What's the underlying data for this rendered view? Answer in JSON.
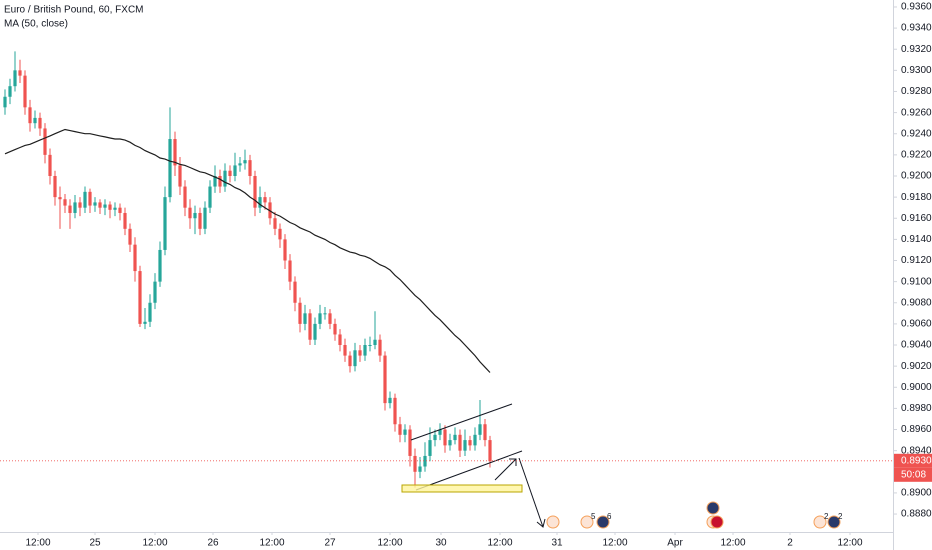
{
  "chart_data": {
    "type": "candlestick",
    "title": "Euro / British Pound, 60, FXCM",
    "up_color": "#26a69a",
    "down_color": "#ef5350",
    "grid": false,
    "x": [
      0,
      1,
      2,
      3,
      4,
      5,
      6,
      7,
      8,
      9,
      10,
      11,
      12,
      13,
      14,
      15,
      16,
      17,
      18,
      19,
      20,
      21,
      22,
      23,
      24,
      25,
      26,
      27,
      28,
      29,
      30,
      31,
      32,
      33,
      34,
      35,
      36,
      37,
      38,
      39,
      40,
      41,
      42,
      43,
      44,
      45,
      46,
      47,
      48,
      49,
      50,
      51,
      52,
      53,
      54,
      55,
      56,
      57,
      58,
      59,
      60,
      61,
      62,
      63,
      64,
      65,
      66,
      67,
      68,
      69,
      70,
      71,
      72,
      73,
      74,
      75,
      76,
      77,
      78,
      79,
      80,
      81,
      82,
      83,
      84,
      85,
      86,
      87,
      88,
      89,
      90,
      91,
      92,
      93,
      94,
      95,
      96,
      97
    ],
    "open": [
      0.9265,
      0.9275,
      0.9285,
      0.93,
      0.9295,
      0.9265,
      0.925,
      0.9255,
      0.9245,
      0.922,
      0.92,
      0.918,
      0.9178,
      0.9172,
      0.9165,
      0.9175,
      0.917,
      0.9185,
      0.9172,
      0.9175,
      0.917,
      0.9173,
      0.9168,
      0.917,
      0.9165,
      0.915,
      0.9135,
      0.911,
      0.906,
      0.9062,
      0.908,
      0.91,
      0.913,
      0.918,
      0.9235,
      0.921,
      0.919,
      0.917,
      0.916,
      0.9165,
      0.915,
      0.917,
      0.919,
      0.92,
      0.919,
      0.9205,
      0.92,
      0.921,
      0.9212,
      0.9215,
      0.92,
      0.917,
      0.918,
      0.9175,
      0.916,
      0.915,
      0.914,
      0.912,
      0.91,
      0.908,
      0.906,
      0.907,
      0.9045,
      0.906,
      0.907,
      0.907,
      0.906,
      0.905,
      0.904,
      0.903,
      0.902,
      0.9035,
      0.903,
      0.904,
      0.904,
      0.9045,
      0.903,
      0.8985,
      0.899,
      0.8965,
      0.8955,
      0.896,
      0.8935,
      0.892,
      0.8925,
      0.8935,
      0.895,
      0.8955,
      0.896,
      0.8945,
      0.895,
      0.8955,
      0.894,
      0.895,
      0.8945,
      0.8955,
      0.8965,
      0.895
    ],
    "high": [
      0.9282,
      0.9292,
      0.9318,
      0.931,
      0.93,
      0.9272,
      0.9262,
      0.926,
      0.925,
      0.9226,
      0.9205,
      0.919,
      0.9183,
      0.9178,
      0.9182,
      0.918,
      0.919,
      0.9188,
      0.918,
      0.9178,
      0.9178,
      0.9176,
      0.9175,
      0.9174,
      0.917,
      0.9155,
      0.9142,
      0.9115,
      0.9075,
      0.9088,
      0.9108,
      0.9138,
      0.919,
      0.9265,
      0.9242,
      0.9218,
      0.9196,
      0.9178,
      0.9172,
      0.917,
      0.9176,
      0.9196,
      0.921,
      0.9206,
      0.9212,
      0.921,
      0.9222,
      0.9218,
      0.9225,
      0.922,
      0.9205,
      0.919,
      0.9185,
      0.918,
      0.9166,
      0.9155,
      0.9145,
      0.9126,
      0.9105,
      0.9085,
      0.9078,
      0.9074,
      0.9066,
      0.9078,
      0.9076,
      0.9074,
      0.9065,
      0.9055,
      0.9046,
      0.9034,
      0.9042,
      0.904,
      0.9046,
      0.9048,
      0.9072,
      0.905,
      0.9034,
      0.8996,
      0.8994,
      0.8972,
      0.8965,
      0.8964,
      0.8942,
      0.8934,
      0.8948,
      0.8962,
      0.896,
      0.8966,
      0.8964,
      0.8956,
      0.8962,
      0.896,
      0.896,
      0.8954,
      0.8962,
      0.8988,
      0.897,
      0.8954
    ],
    "low": [
      0.9258,
      0.9268,
      0.928,
      0.9288,
      0.9258,
      0.9242,
      0.9245,
      0.9238,
      0.9212,
      0.9192,
      0.9172,
      0.915,
      0.9165,
      0.915,
      0.916,
      0.9162,
      0.9165,
      0.9165,
      0.9166,
      0.9164,
      0.9163,
      0.916,
      0.9162,
      0.9158,
      0.9144,
      0.9128,
      0.91,
      0.9057,
      0.9055,
      0.9057,
      0.9074,
      0.9095,
      0.9125,
      0.9175,
      0.92,
      0.9182,
      0.9162,
      0.915,
      0.9145,
      0.9144,
      0.9145,
      0.9165,
      0.9184,
      0.9184,
      0.9185,
      0.9194,
      0.9195,
      0.9204,
      0.9206,
      0.9192,
      0.9162,
      0.9165,
      0.9168,
      0.9154,
      0.9144,
      0.9132,
      0.9112,
      0.9092,
      0.9072,
      0.9052,
      0.9054,
      0.904,
      0.904,
      0.9055,
      0.9064,
      0.9055,
      0.9044,
      0.9034,
      0.9024,
      0.9014,
      0.9015,
      0.9024,
      0.9025,
      0.9034,
      0.9036,
      0.9024,
      0.8978,
      0.898,
      0.8958,
      0.8948,
      0.8948,
      0.8925,
      0.8905,
      0.8914,
      0.892,
      0.893,
      0.8944,
      0.895,
      0.8938,
      0.894,
      0.8946,
      0.8934,
      0.8935,
      0.894,
      0.894,
      0.895,
      0.8944,
      0.8924
    ],
    "close": [
      0.9275,
      0.9285,
      0.93,
      0.9295,
      0.9265,
      0.925,
      0.9255,
      0.9245,
      0.922,
      0.92,
      0.918,
      0.9178,
      0.9172,
      0.9165,
      0.9175,
      0.917,
      0.9185,
      0.9172,
      0.9175,
      0.917,
      0.9173,
      0.9168,
      0.917,
      0.9165,
      0.915,
      0.9135,
      0.911,
      0.906,
      0.9062,
      0.908,
      0.91,
      0.913,
      0.918,
      0.9235,
      0.921,
      0.919,
      0.917,
      0.916,
      0.9165,
      0.915,
      0.917,
      0.919,
      0.92,
      0.919,
      0.9205,
      0.92,
      0.921,
      0.9212,
      0.9215,
      0.92,
      0.917,
      0.918,
      0.9175,
      0.916,
      0.915,
      0.914,
      0.912,
      0.91,
      0.908,
      0.906,
      0.907,
      0.9045,
      0.906,
      0.907,
      0.907,
      0.906,
      0.905,
      0.904,
      0.903,
      0.902,
      0.9035,
      0.903,
      0.904,
      0.904,
      0.9045,
      0.903,
      0.8985,
      0.899,
      0.8965,
      0.8955,
      0.896,
      0.8935,
      0.892,
      0.8925,
      0.8935,
      0.895,
      0.8955,
      0.896,
      0.8945,
      0.895,
      0.8955,
      0.894,
      0.895,
      0.8945,
      0.8955,
      0.8965,
      0.895,
      0.893
    ],
    "ma": {
      "name": "MA (50, close)",
      "color": "#1e1e1e",
      "values": [
        0.9221,
        0.9223,
        0.9225,
        0.9227,
        0.9229,
        0.923,
        0.9232,
        0.9234,
        0.9236,
        0.9238,
        0.924,
        0.9242,
        0.9244,
        0.9243,
        0.9242,
        0.9241,
        0.924,
        0.924,
        0.9239,
        0.9238,
        0.9237,
        0.9236,
        0.9235,
        0.9235,
        0.9234,
        0.9232,
        0.9229,
        0.9227,
        0.9224,
        0.9222,
        0.922,
        0.9217,
        0.9216,
        0.9214,
        0.9213,
        0.9211,
        0.921,
        0.9208,
        0.9206,
        0.9204,
        0.9203,
        0.9201,
        0.9199,
        0.9197,
        0.9194,
        0.9192,
        0.9189,
        0.9187,
        0.9184,
        0.918,
        0.9177,
        0.9173,
        0.917,
        0.9167,
        0.9164,
        0.9162,
        0.9159,
        0.9156,
        0.9154,
        0.9151,
        0.9149,
        0.9147,
        0.9144,
        0.9142,
        0.914,
        0.9137,
        0.9135,
        0.9132,
        0.913,
        0.9128,
        0.9127,
        0.9125,
        0.9124,
        0.9122,
        0.9119,
        0.9116,
        0.9114,
        0.9111,
        0.9106,
        0.9102,
        0.9097,
        0.9092,
        0.9087,
        0.9083,
        0.9078,
        0.9073,
        0.9068,
        0.9064,
        0.9059,
        0.9054,
        0.9049,
        0.9045,
        0.904,
        0.9035,
        0.903,
        0.9024,
        0.9019,
        0.9014
      ]
    },
    "xlim": [
      -1,
      177.6
    ],
    "ylim": [
      0.8863,
      0.93666
    ],
    "xticks": [
      {
        "value": 6.6,
        "label": "12:00"
      },
      {
        "value": 18,
        "label": "25"
      },
      {
        "value": 30,
        "label": "12:00"
      },
      {
        "value": 41.6,
        "label": "26"
      },
      {
        "value": 53.4,
        "label": "12:00"
      },
      {
        "value": 65,
        "label": "27"
      },
      {
        "value": 77,
        "label": "12:00"
      },
      {
        "value": 87.2,
        "label": "30"
      },
      {
        "value": 99,
        "label": "12:00"
      },
      {
        "value": 110.4,
        "label": "31"
      },
      {
        "value": 122,
        "label": "12:00"
      },
      {
        "value": 134,
        "label": "Apr"
      },
      {
        "value": 145.6,
        "label": "12:00"
      },
      {
        "value": 157,
        "label": "2"
      },
      {
        "value": 169,
        "label": "12:00"
      }
    ],
    "yticks": [
      {
        "value": 0.936,
        "label": "0.93600"
      },
      {
        "value": 0.934,
        "label": "0.93400"
      },
      {
        "value": 0.932,
        "label": "0.93200"
      },
      {
        "value": 0.93,
        "label": "0.93000"
      },
      {
        "value": 0.928,
        "label": "0.92800"
      },
      {
        "value": 0.926,
        "label": "0.92600"
      },
      {
        "value": 0.924,
        "label": "0.92400"
      },
      {
        "value": 0.922,
        "label": "0.92200"
      },
      {
        "value": 0.92,
        "label": "0.92000"
      },
      {
        "value": 0.918,
        "label": "0.91800"
      },
      {
        "value": 0.916,
        "label": "0.91600"
      },
      {
        "value": 0.914,
        "label": "0.91400"
      },
      {
        "value": 0.912,
        "label": "0.91200"
      },
      {
        "value": 0.91,
        "label": "0.91000"
      },
      {
        "value": 0.908,
        "label": "0.90800"
      },
      {
        "value": 0.906,
        "label": "0.90600"
      },
      {
        "value": 0.904,
        "label": "0.90400"
      },
      {
        "value": 0.902,
        "label": "0.90200"
      },
      {
        "value": 0.9,
        "label": "0.90000"
      },
      {
        "value": 0.898,
        "label": "0.89800"
      },
      {
        "value": 0.896,
        "label": "0.89600"
      },
      {
        "value": 0.894,
        "label": "0.89400"
      },
      {
        "value": 0.89,
        "label": "0.89000"
      },
      {
        "value": 0.888,
        "label": "0.88800"
      }
    ],
    "last_price": {
      "value": 0.89304,
      "label": "0.89304",
      "color": "#ef5350"
    },
    "countdown": "50:08"
  },
  "events": [
    "5",
    "6",
    "2",
    "2"
  ]
}
